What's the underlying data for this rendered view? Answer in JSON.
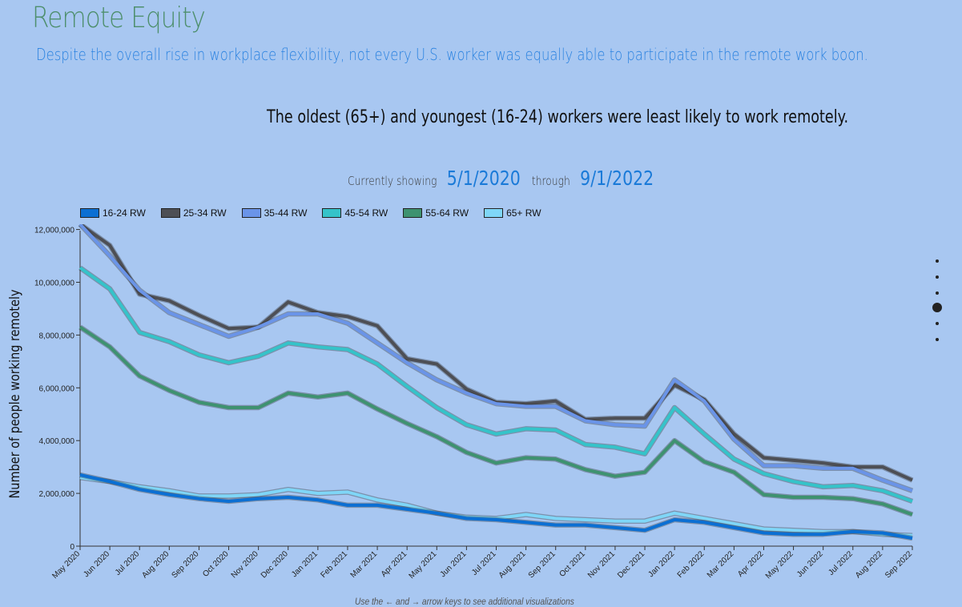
{
  "header": {
    "title": "Remote Equity",
    "subtitle": "Despite the overall rise in workplace flexibility, not every U.S. worker was equally able to participate in the remote work boon."
  },
  "chart_heading": "The oldest (65+) and youngest (16-24) workers were least likely to work remotely.",
  "range": {
    "prefix": "Currently showing",
    "start": "5/1/2020",
    "middle": "through",
    "end": "9/1/2022"
  },
  "footer_hint": "Use the ← and → arrow keys to see additional visualizations",
  "nav": {
    "dot_count": 6,
    "active_index": 3
  },
  "chart_data": {
    "type": "line",
    "title": "",
    "xlabel": "",
    "ylabel": "Number of people working remotely",
    "ylim": [
      0,
      12200000
    ],
    "yticks": [
      0,
      2000000,
      4000000,
      6000000,
      8000000,
      10000000,
      12000000
    ],
    "ytick_labels": [
      "0",
      "2,000,000",
      "4,000,000",
      "6,000,000",
      "8,000,000",
      "10,000,000",
      "12,000,000"
    ],
    "grid": false,
    "legend_position": "top-left",
    "categories": [
      "May 2020",
      "Jun 2020",
      "Jul 2020",
      "Aug 2020",
      "Sep 2020",
      "Oct 2020",
      "Nov 2020",
      "Dec 2020",
      "Jan 2021",
      "Feb 2021",
      "Mar 2021",
      "Apr 2021",
      "May 2021",
      "Jun 2021",
      "Jul 2021",
      "Aug 2021",
      "Sep 2021",
      "Oct 2021",
      "Nov 2021",
      "Dec 2021",
      "Jan 2022",
      "Feb 2022",
      "Mar 2022",
      "Apr 2022",
      "May 2022",
      "Jun 2022",
      "Jul 2022",
      "Aug 2022",
      "Sep 2022"
    ],
    "series": [
      {
        "name": "16-24 RW",
        "color": "#0b6fd3",
        "values": [
          2700000,
          2450000,
          2150000,
          1950000,
          1800000,
          1700000,
          1800000,
          1850000,
          1750000,
          1550000,
          1550000,
          1400000,
          1250000,
          1050000,
          1000000,
          900000,
          800000,
          800000,
          700000,
          600000,
          1000000,
          900000,
          700000,
          500000,
          450000,
          450000,
          550000,
          500000,
          300000
        ]
      },
      {
        "name": "25-34 RW",
        "color": "#4d4f55",
        "values": [
          12200000,
          11400000,
          9550000,
          9300000,
          8750000,
          8250000,
          8300000,
          9250000,
          8850000,
          8700000,
          8350000,
          7100000,
          6900000,
          5950000,
          5450000,
          5400000,
          5500000,
          4800000,
          4850000,
          4850000,
          6100000,
          5550000,
          4250000,
          3350000,
          3250000,
          3150000,
          3000000,
          3000000,
          2500000
        ]
      },
      {
        "name": "35-44 RW",
        "color": "#6a94e8",
        "values": [
          12200000,
          11000000,
          9700000,
          8850000,
          8400000,
          7950000,
          8300000,
          8800000,
          8800000,
          8450000,
          7700000,
          6950000,
          6300000,
          5800000,
          5400000,
          5300000,
          5300000,
          4750000,
          4600000,
          4550000,
          6300000,
          5500000,
          4050000,
          3050000,
          3050000,
          2950000,
          2950000,
          2500000,
          2100000
        ]
      },
      {
        "name": "45-54 RW",
        "color": "#35c3c9",
        "values": [
          10550000,
          9750000,
          8100000,
          7750000,
          7250000,
          6950000,
          7200000,
          7700000,
          7550000,
          7450000,
          6900000,
          6050000,
          5250000,
          4600000,
          4250000,
          4450000,
          4400000,
          3850000,
          3750000,
          3500000,
          5250000,
          4250000,
          3300000,
          2750000,
          2450000,
          2250000,
          2300000,
          2100000,
          1700000
        ]
      },
      {
        "name": "55-64 RW",
        "color": "#3e9270",
        "values": [
          8300000,
          7550000,
          6450000,
          5900000,
          5450000,
          5250000,
          5250000,
          5800000,
          5650000,
          5800000,
          5200000,
          4650000,
          4150000,
          3550000,
          3150000,
          3350000,
          3300000,
          2900000,
          2650000,
          2800000,
          4000000,
          3200000,
          2800000,
          1950000,
          1850000,
          1850000,
          1800000,
          1600000,
          1200000
        ]
      },
      {
        "name": "65+ RW",
        "color": "#7fd6f7",
        "values": [
          2600000,
          2450000,
          2250000,
          2100000,
          1900000,
          1900000,
          1950000,
          2150000,
          2000000,
          2050000,
          1750000,
          1550000,
          1250000,
          1100000,
          1050000,
          1200000,
          1050000,
          1000000,
          950000,
          950000,
          1250000,
          1050000,
          850000,
          650000,
          600000,
          550000,
          550000,
          450000,
          400000
        ]
      }
    ]
  }
}
